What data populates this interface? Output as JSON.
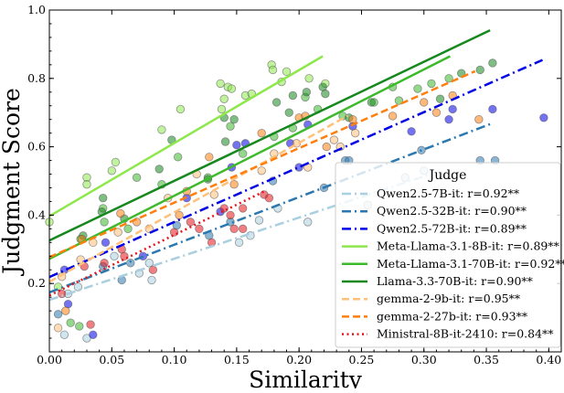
{
  "chart_data": {
    "type": "scatter",
    "xlabel": "Similarity",
    "ylabel": "Judgment Score",
    "xlim": [
      0,
      0.41
    ],
    "ylim": [
      0,
      1.0
    ],
    "xticks": [
      "0.00",
      "0.05",
      "0.10",
      "0.15",
      "0.20",
      "0.25",
      "0.30",
      "0.35",
      "0.40"
    ],
    "yticks": [
      "0.2",
      "0.4",
      "0.6",
      "0.8",
      "1.0"
    ],
    "grid": false,
    "legend": {
      "title": "Judge",
      "placement": "bottom-right"
    },
    "series": [
      {
        "name": "Qwen2.5-7B-it: r=0.92**",
        "color": "#a9cfe0",
        "style": "dashdot",
        "fit": [
          [
            0,
            0.152
          ],
          [
            0.303,
            0.517
          ]
        ],
        "points": [
          [
            0.012,
            0.05
          ],
          [
            0.015,
            0.17
          ],
          [
            0.023,
            0.19
          ],
          [
            0.03,
            0.04
          ],
          [
            0.052,
            0.28
          ],
          [
            0.072,
            0.23
          ],
          [
            0.08,
            0.26
          ],
          [
            0.082,
            0.21
          ],
          [
            0.152,
            0.32
          ],
          [
            0.161,
            0.34
          ],
          [
            0.168,
            0.385
          ],
          [
            0.183,
            0.42
          ],
          [
            0.207,
            0.38
          ],
          [
            0.255,
            0.43
          ],
          [
            0.3,
            0.53
          ],
          [
            0.285,
            0.51
          ]
        ]
      },
      {
        "name": "Qwen2.5-32B-it: r=0.90**",
        "color": "#2b78b0",
        "style": "dashdot",
        "fit": [
          [
            0,
            0.174
          ],
          [
            0.355,
            0.669
          ]
        ],
        "points": [
          [
            0.007,
            0.11
          ],
          [
            0.043,
            0.25
          ],
          [
            0.058,
            0.21
          ],
          [
            0.065,
            0.26
          ],
          [
            0.102,
            0.37
          ],
          [
            0.128,
            0.34
          ],
          [
            0.145,
            0.38
          ],
          [
            0.179,
            0.5
          ],
          [
            0.22,
            0.48
          ],
          [
            0.237,
            0.56
          ],
          [
            0.298,
            0.59
          ],
          [
            0.345,
            0.56
          ],
          [
            0.357,
            0.56
          ],
          [
            0.24,
            0.56
          ]
        ]
      },
      {
        "name": "Qwen2.5-72B-it: r=0.89**",
        "color": "#0000e6",
        "style": "dashdot",
        "fit": [
          [
            0,
            0.219
          ],
          [
            0.395,
            0.854
          ]
        ],
        "points": [
          [
            0.015,
            0.14
          ],
          [
            0.035,
            0.05
          ],
          [
            0.045,
            0.32
          ],
          [
            0.075,
            0.28
          ],
          [
            0.11,
            0.45
          ],
          [
            0.137,
            0.41
          ],
          [
            0.15,
            0.605
          ],
          [
            0.157,
            0.61
          ],
          [
            0.146,
            0.54
          ],
          [
            0.193,
            0.61
          ],
          [
            0.2,
            0.54
          ],
          [
            0.207,
            0.665
          ],
          [
            0.243,
            0.66
          ],
          [
            0.29,
            0.645
          ],
          [
            0.32,
            0.68
          ],
          [
            0.323,
            0.71
          ],
          [
            0.355,
            0.71
          ],
          [
            0.396,
            0.685
          ],
          [
            0.012,
            0.24
          ]
        ]
      },
      {
        "name": "Meta-Llama-3.1-8B-it: r=0.89**",
        "color": "#8ee84c",
        "style": "solid",
        "fit": [
          [
            0,
            0.397
          ],
          [
            0.219,
            0.865
          ]
        ],
        "points": [
          [
            0.03,
            0.51
          ],
          [
            0.03,
            0.49
          ],
          [
            0.05,
            0.53
          ],
          [
            0.053,
            0.555
          ],
          [
            0.09,
            0.65
          ],
          [
            0.105,
            0.71
          ],
          [
            0.137,
            0.785
          ],
          [
            0.14,
            0.74
          ],
          [
            0.143,
            0.775
          ],
          [
            0.146,
            0.77
          ],
          [
            0.157,
            0.75
          ],
          [
            0.162,
            0.755
          ],
          [
            0.178,
            0.84
          ],
          [
            0.179,
            0.825
          ],
          [
            0.19,
            0.82
          ],
          [
            0.186,
            0.79
          ],
          [
            0.208,
            0.8
          ],
          [
            0.221,
            0.785
          ],
          [
            0,
            0.38
          ],
          [
            0.138,
            0.71
          ],
          [
            0.007,
            0.19
          ]
        ]
      },
      {
        "name": "Meta-Llama-3.1-70B-it: r=0.92**",
        "color": "#3dba2c",
        "style": "solid",
        "fit": [
          [
            0,
            0.272
          ],
          [
            0.321,
            0.865
          ]
        ],
        "points": [
          [
            0.025,
            0.33
          ],
          [
            0.044,
            0.38
          ],
          [
            0.063,
            0.36
          ],
          [
            0.07,
            0.51
          ],
          [
            0.09,
            0.49
          ],
          [
            0.103,
            0.57
          ],
          [
            0.127,
            0.51
          ],
          [
            0.145,
            0.66
          ],
          [
            0.155,
            0.58
          ],
          [
            0.18,
            0.63
          ],
          [
            0.195,
            0.655
          ],
          [
            0.205,
            0.745
          ],
          [
            0.215,
            0.71
          ],
          [
            0.235,
            0.69
          ],
          [
            0.26,
            0.73
          ],
          [
            0.275,
            0.775
          ],
          [
            0.28,
            0.735
          ],
          [
            0.295,
            0.77
          ],
          [
            0.306,
            0.785
          ],
          [
            0.32,
            0.8
          ],
          [
            0.017,
            0.085
          ],
          [
            0.024,
            0.075
          ],
          [
            0.043,
            0.42
          ]
        ]
      },
      {
        "name": "Llama-3.3-70B-it: r=0.90**",
        "color": "#16881e",
        "style": "solid",
        "fit": [
          [
            0,
            0.326
          ],
          [
            0.353,
            0.941
          ]
        ],
        "points": [
          [
            0.027,
            0.34
          ],
          [
            0.042,
            0.41
          ],
          [
            0.043,
            0.45
          ],
          [
            0.06,
            0.39
          ],
          [
            0.088,
            0.535
          ],
          [
            0.098,
            0.62
          ],
          [
            0.127,
            0.505
          ],
          [
            0.14,
            0.685
          ],
          [
            0.141,
            0.615
          ],
          [
            0.148,
            0.68
          ],
          [
            0.182,
            0.73
          ],
          [
            0.192,
            0.7
          ],
          [
            0.195,
            0.75
          ],
          [
            0.206,
            0.76
          ],
          [
            0.219,
            0.775
          ],
          [
            0.221,
            0.755
          ],
          [
            0.24,
            0.685
          ],
          [
            0.313,
            0.74
          ],
          [
            0.33,
            0.815
          ],
          [
            0.345,
            0.825
          ],
          [
            0.355,
            0.845
          ],
          [
            0.258,
            0.73
          ]
        ]
      },
      {
        "name": "gemma-2-9b-it: r=0.95**",
        "color": "#ffc07a",
        "style": "dashed",
        "fit": [
          [
            0,
            0.205
          ],
          [
            0.239,
            0.691
          ]
        ],
        "points": [
          [
            0.007,
            0.07
          ],
          [
            0.01,
            0.22
          ],
          [
            0.025,
            0.27
          ],
          [
            0.035,
            0.32
          ],
          [
            0.055,
            0.35
          ],
          [
            0.08,
            0.36
          ],
          [
            0.095,
            0.45
          ],
          [
            0.118,
            0.52
          ],
          [
            0.132,
            0.46
          ],
          [
            0.17,
            0.53
          ],
          [
            0.18,
            0.58
          ],
          [
            0.198,
            0.61
          ],
          [
            0.207,
            0.54
          ],
          [
            0.233,
            0.6
          ],
          [
            0.245,
            0.64
          ],
          [
            0.228,
            0.62
          ]
        ]
      },
      {
        "name": "gemma-2-27b-it: r=0.93**",
        "color": "#ff7f0e",
        "style": "dashed",
        "fit": [
          [
            0,
            0.277
          ],
          [
            0.341,
            0.821
          ]
        ],
        "points": [
          [
            0.013,
            0.12
          ],
          [
            0.026,
            0.33
          ],
          [
            0.057,
            0.405
          ],
          [
            0.07,
            0.38
          ],
          [
            0.104,
            0.4
          ],
          [
            0.11,
            0.47
          ],
          [
            0.128,
            0.57
          ],
          [
            0.148,
            0.49
          ],
          [
            0.17,
            0.64
          ],
          [
            0.2,
            0.685
          ],
          [
            0.222,
            0.6
          ],
          [
            0.243,
            0.68
          ],
          [
            0.275,
            0.69
          ],
          [
            0.3,
            0.73
          ],
          [
            0.31,
            0.7
          ],
          [
            0.323,
            0.75
          ],
          [
            0.344,
            0.68
          ],
          [
            0.205,
            0.69
          ]
        ]
      },
      {
        "name": "Ministral-8B-it-2410: r=0.84**",
        "color": "#e8141c",
        "style": "dotted",
        "fit": [
          [
            0,
            0.165
          ],
          [
            0.174,
            0.473
          ]
        ],
        "points": [
          [
            0.01,
            0.17
          ],
          [
            0.028,
            0.25
          ],
          [
            0.033,
            0.08
          ],
          [
            0.044,
            0.26
          ],
          [
            0.058,
            0.3
          ],
          [
            0.06,
            0.28
          ],
          [
            0.083,
            0.24
          ],
          [
            0.1,
            0.35
          ],
          [
            0.113,
            0.38
          ],
          [
            0.12,
            0.36
          ],
          [
            0.13,
            0.32
          ],
          [
            0.14,
            0.42
          ],
          [
            0.145,
            0.4
          ],
          [
            0.148,
            0.36
          ],
          [
            0.155,
            0.42
          ],
          [
            0.172,
            0.46
          ],
          [
            0.176,
            0.45
          ],
          [
            0.155,
            0.36
          ]
        ]
      }
    ]
  }
}
